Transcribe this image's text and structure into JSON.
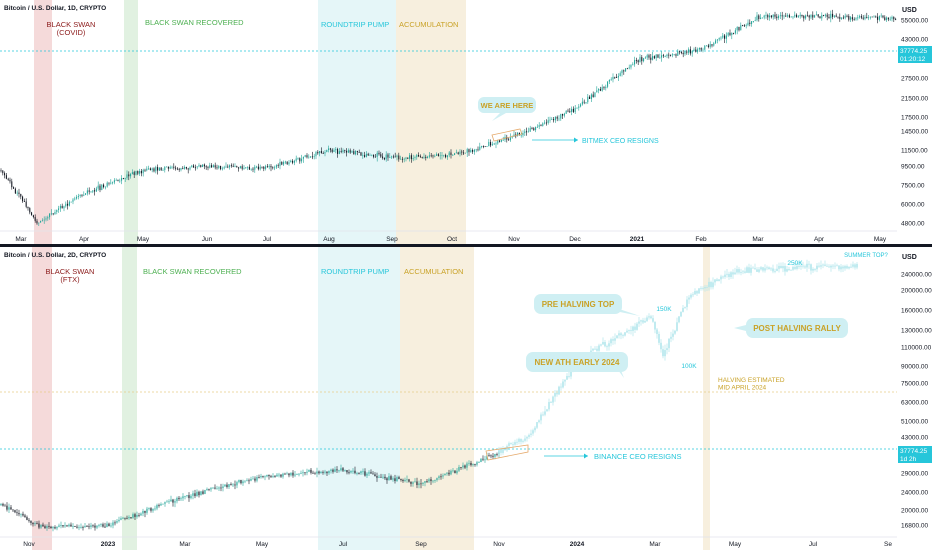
{
  "colors": {
    "up": "#26a69a",
    "down": "#131722",
    "ghost": "#b2e6ec",
    "zone_red": "#f3d3d3",
    "zone_green": "#dcefdc",
    "zone_cyan": "#e0f4f7",
    "zone_tan": "#f6ecd8",
    "label_red": "#8b1a1a",
    "label_green": "#4caf50",
    "label_cyan": "#26c6da",
    "label_gold": "#c9a227",
    "price_badge": "#26c6da",
    "divider": "#131722"
  },
  "chart_data": [
    {
      "type": "candlestick",
      "title": "Bitcoin / U.S. Dollar, 1D, CRYPTO",
      "currency": "USD",
      "axis_scale": "log",
      "y_ticks": [
        "55000.00",
        "43000.00",
        "27500.00",
        "21500.00",
        "17500.00",
        "14500.00",
        "11500.00",
        "9500.00",
        "7500.00",
        "6000.00",
        "4800.00"
      ],
      "x_ticks": [
        "Mar",
        "Apr",
        "May",
        "Jun",
        "Jul",
        "Aug",
        "Sep",
        "Oct",
        "Nov",
        "Dec",
        "2021",
        "Feb",
        "Mar",
        "Apr",
        "May"
      ],
      "last_price": "37774.25",
      "countdown": "01:20:12",
      "series_anchors": [
        {
          "x": "Mar 2020",
          "y": 9000
        },
        {
          "x": "Mar 2020",
          "y": 4800
        },
        {
          "x": "Apr 2020",
          "y": 6800
        },
        {
          "x": "May 2020",
          "y": 9000
        },
        {
          "x": "Jun 2020",
          "y": 9500
        },
        {
          "x": "Jul 2020",
          "y": 9200
        },
        {
          "x": "Aug 2020",
          "y": 11500
        },
        {
          "x": "Sep 2020",
          "y": 10500
        },
        {
          "x": "Oct 2020",
          "y": 10800
        },
        {
          "x": "Nov 2020",
          "y": 13500
        },
        {
          "x": "Dec 2020",
          "y": 19000
        },
        {
          "x": "2021",
          "y": 34000
        },
        {
          "x": "Feb 2021",
          "y": 38000
        },
        {
          "x": "Mar 2021",
          "y": 57000
        },
        {
          "x": "Apr 2021",
          "y": 58000
        },
        {
          "x": "May 2021",
          "y": 56000
        }
      ],
      "zones": [
        {
          "label": "BLACK SWAN\n(COVID)"
        },
        {
          "label": "BLACK SWAN RECOVERED"
        },
        {
          "label": "ROUNDTRIP PUMP"
        },
        {
          "label": "ACCUMULATION"
        }
      ],
      "annotations": [
        {
          "text": "WE ARE HERE"
        },
        {
          "text": "BITMEX CEO RESIGNS"
        }
      ]
    },
    {
      "type": "candlestick",
      "title": "Bitcoin / U.S. Dollar, 2D, CRYPTO",
      "currency": "USD",
      "axis_scale": "log",
      "y_ticks": [
        "240000.00",
        "200000.00",
        "160000.00",
        "130000.00",
        "110000.00",
        "90000.00",
        "75000.00",
        "63000.00",
        "51000.00",
        "43000.00",
        "35000.00",
        "29000.00",
        "24000.00",
        "20000.00",
        "16800.00"
      ],
      "x_ticks": [
        "Nov",
        "2023",
        "Mar",
        "May",
        "Jul",
        "Sep",
        "Nov",
        "2024",
        "Mar",
        "May",
        "Jul",
        "Se"
      ],
      "last_price": "37774.25",
      "countdown": "1d 2h",
      "series_anchors": [
        {
          "x": "Nov 2022",
          "y": 21000
        },
        {
          "x": "Nov 2022",
          "y": 16500
        },
        {
          "x": "2023",
          "y": 16800
        },
        {
          "x": "Mar 2023",
          "y": 23000
        },
        {
          "x": "May 2023",
          "y": 28000
        },
        {
          "x": "Jul 2023",
          "y": 30000
        },
        {
          "x": "Sep 2023",
          "y": 26000
        },
        {
          "x": "Nov 2023",
          "y": 36000
        }
      ],
      "projection_anchors": [
        {
          "x": "2024",
          "y": 44000
        },
        {
          "x": "Mar 2024",
          "y": 95000
        },
        {
          "x": "Mar 2024",
          "y": 150000
        },
        {
          "x": "Mar 2024",
          "y": 100000
        },
        {
          "x": "May 2024",
          "y": 190000
        },
        {
          "x": "Jul 2024",
          "y": 250000
        },
        {
          "x": "Se 2024",
          "y": 260000
        }
      ],
      "zones": [
        {
          "label": "BLACK SWAN\n(FTX)"
        },
        {
          "label": "BLACK SWAN RECOVERED"
        },
        {
          "label": "ROUNDTRIP PUMP"
        },
        {
          "label": "ACCUMULATION"
        }
      ],
      "annotations": [
        {
          "text": "PRE HALVING TOP"
        },
        {
          "text": "150K"
        },
        {
          "text": "NEW ATH EARLY 2024"
        },
        {
          "text": "100K"
        },
        {
          "text": "POST HALVING RALLY"
        },
        {
          "text": "HALVING ESTIMATED\nMID APRIL 2024"
        },
        {
          "text": "250K"
        },
        {
          "text": "SUMMER TOP?"
        },
        {
          "text": "BINANCE CEO RESIGNS"
        }
      ]
    }
  ]
}
